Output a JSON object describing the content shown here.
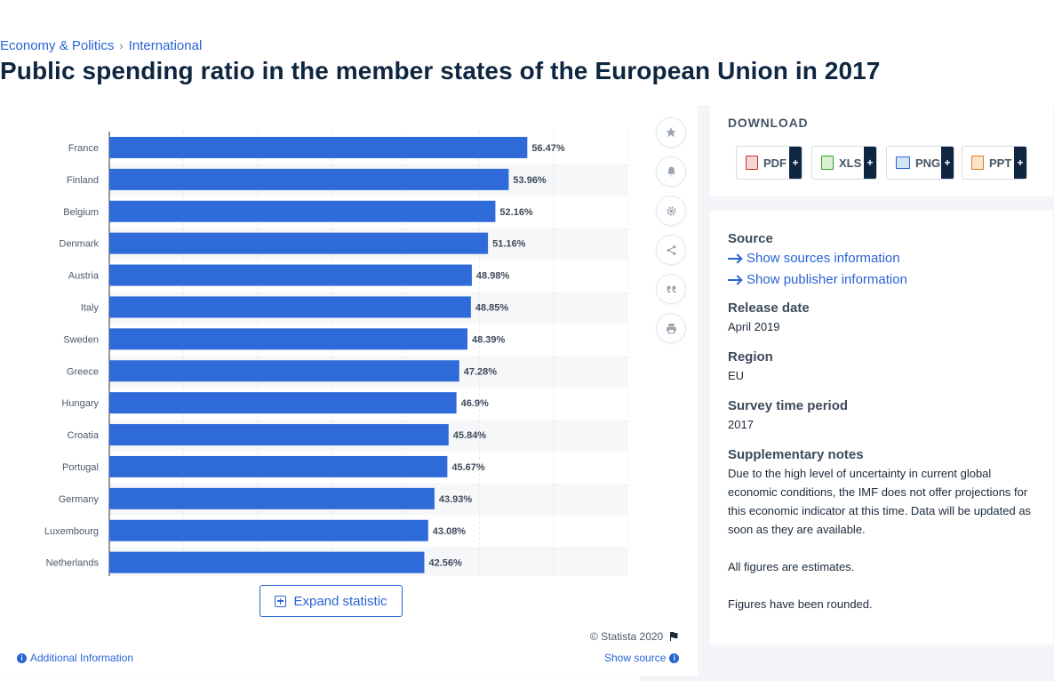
{
  "breadcrumb": {
    "item1": "Economy & Politics",
    "separator": "›",
    "item2": "International"
  },
  "page_title": "Public spending ratio in the member states of the European Union in 2017",
  "chart_data": {
    "type": "bar",
    "orientation": "horizontal",
    "categories": [
      "France",
      "Finland",
      "Belgium",
      "Denmark",
      "Austria",
      "Italy",
      "Sweden",
      "Greece",
      "Hungary",
      "Croatia",
      "Portugal",
      "Germany",
      "Luxembourg",
      "Netherlands"
    ],
    "values": [
      56.47,
      53.96,
      52.16,
      51.16,
      48.98,
      48.85,
      48.39,
      47.28,
      46.9,
      45.84,
      45.67,
      43.93,
      43.08,
      42.56
    ],
    "value_labels": [
      "56.47%",
      "53.96%",
      "52.16%",
      "51.16%",
      "48.98%",
      "48.85%",
      "48.39%",
      "47.28%",
      "46.9%",
      "45.84%",
      "45.67%",
      "43.93%",
      "43.08%",
      "42.56%"
    ],
    "xlim": [
      0,
      70
    ],
    "grid": true,
    "bar_color": "#2f6ad9"
  },
  "toolbar": {
    "icons": [
      "star-icon",
      "bell-icon",
      "gear-icon",
      "share-icon",
      "quote-icon",
      "print-icon"
    ]
  },
  "expand": {
    "label": "Expand statistic"
  },
  "footer": {
    "copyright": "© Statista 2020",
    "additional": "Additional Information",
    "show_source": "Show source"
  },
  "download": {
    "title": "DOWNLOAD",
    "buttons": [
      {
        "label": "PDF",
        "plus": "+"
      },
      {
        "label": "XLS",
        "plus": "+"
      },
      {
        "label": "PNG",
        "plus": "+"
      },
      {
        "label": "PPT",
        "plus": "+"
      }
    ]
  },
  "info": {
    "source_label": "Source",
    "show_sources": "Show sources information",
    "show_publisher": "Show publisher information",
    "release_label": "Release date",
    "release_value": "April 2019",
    "region_label": "Region",
    "region_value": "EU",
    "survey_label": "Survey time period",
    "survey_value": "2017",
    "notes_label": "Supplementary notes",
    "notes_text": "Due to the high level of uncertainty in current global economic conditions, the IMF does not offer projections for this economic indicator at this time. Data will be updated as soon as they are available.",
    "notes_estimates": "All figures are estimates.",
    "notes_rounded": "Figures have been rounded."
  },
  "colors": {
    "accent": "#2a63d4",
    "title": "#0f2640"
  }
}
